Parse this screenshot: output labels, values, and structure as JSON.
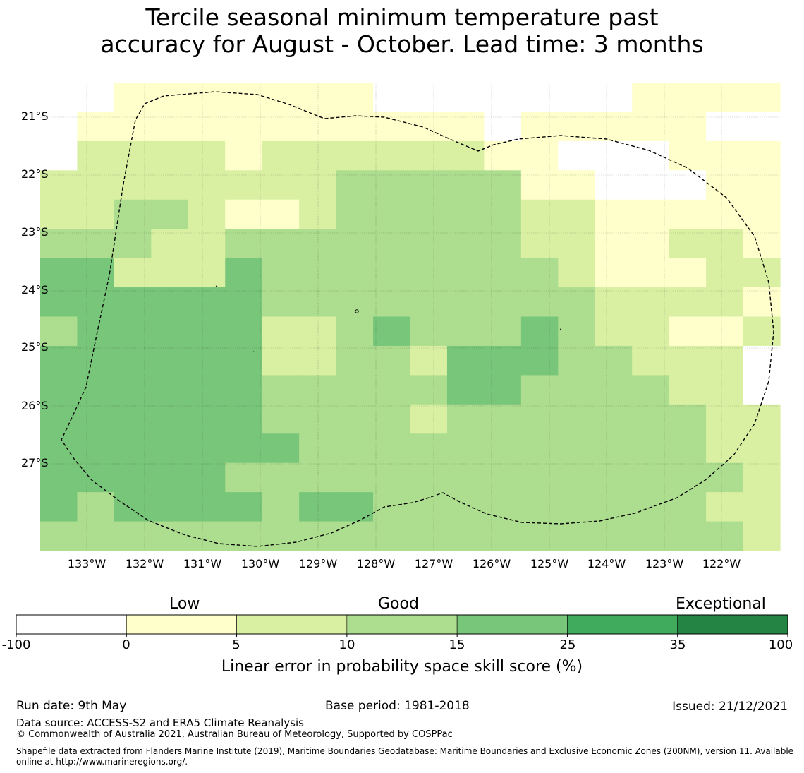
{
  "title": {
    "line1": "Tercile seasonal minimum temperature past",
    "line2": "accuracy for August - October. Lead time: 3 months"
  },
  "map": {
    "lat_labels": [
      "21°S",
      "22°S",
      "23°S",
      "24°S",
      "25°S",
      "26°S",
      "27°S"
    ],
    "lon_labels": [
      "133°W",
      "132°W",
      "131°W",
      "130°W",
      "129°W",
      "128°W",
      "127°W",
      "126°W",
      "125°W",
      "124°W",
      "123°W",
      "122°W"
    ],
    "grid_category_rows": [
      "00111111100000001111",
      "01111111111101111100",
      "02222122222211000111",
      "22222222333331100011",
      "22332112333332211111",
      "33322333333332211221",
      "44222433333333211122",
      "44444433333333322221",
      "34444422343334322112",
      "44444422332444332220",
      "44444433333443333220",
      "44444433332333333322",
      "44444443333333333322",
      "44444333333333333332",
      "43444434433333333322",
      "33333333333333333332"
    ],
    "colors": [
      "#ffffff",
      "#ffffcc",
      "#d9f0a3",
      "#addd8e",
      "#78c679",
      "#41ab5d",
      "#238443"
    ],
    "boundary_style": "dashed black"
  },
  "colorbar": {
    "category_labels": [
      "Low",
      "Good",
      "Exceptional"
    ],
    "tick_labels": [
      "-100",
      "0",
      "5",
      "10",
      "15",
      "25",
      "35",
      "100"
    ],
    "bins": [
      {
        "from": -100,
        "to": 0,
        "color": "#ffffff"
      },
      {
        "from": 0,
        "to": 5,
        "color": "#ffffcc"
      },
      {
        "from": 5,
        "to": 10,
        "color": "#d9f0a3"
      },
      {
        "from": 10,
        "to": 15,
        "color": "#addd8e"
      },
      {
        "from": 15,
        "to": 25,
        "color": "#78c679"
      },
      {
        "from": 25,
        "to": 35,
        "color": "#41ab5d"
      },
      {
        "from": 35,
        "to": 100,
        "color": "#238443"
      }
    ],
    "title": "Linear error in probability space skill score (%)"
  },
  "footer": {
    "run_date": "Run date: 9th May",
    "base_period": "Base period: 1981-2018",
    "issued": "Issued: 21/12/2021",
    "data_source": "Data source: ACCESS-S2 and ERA5 Climate Reanalysis",
    "copyright": "© Commonwealth of Australia 2021, Australian Bureau of Meteorology, Supported by COSPPac",
    "shapefile_line1": "Shapefile data extracted from Flanders Marine Institute (2019), Maritime Boundaries Geodatabase: Maritime Boundaries and Exclusive Economic Zones (200NM), version 11. Available",
    "shapefile_line2": "online at http://www.marineregions.org/."
  }
}
